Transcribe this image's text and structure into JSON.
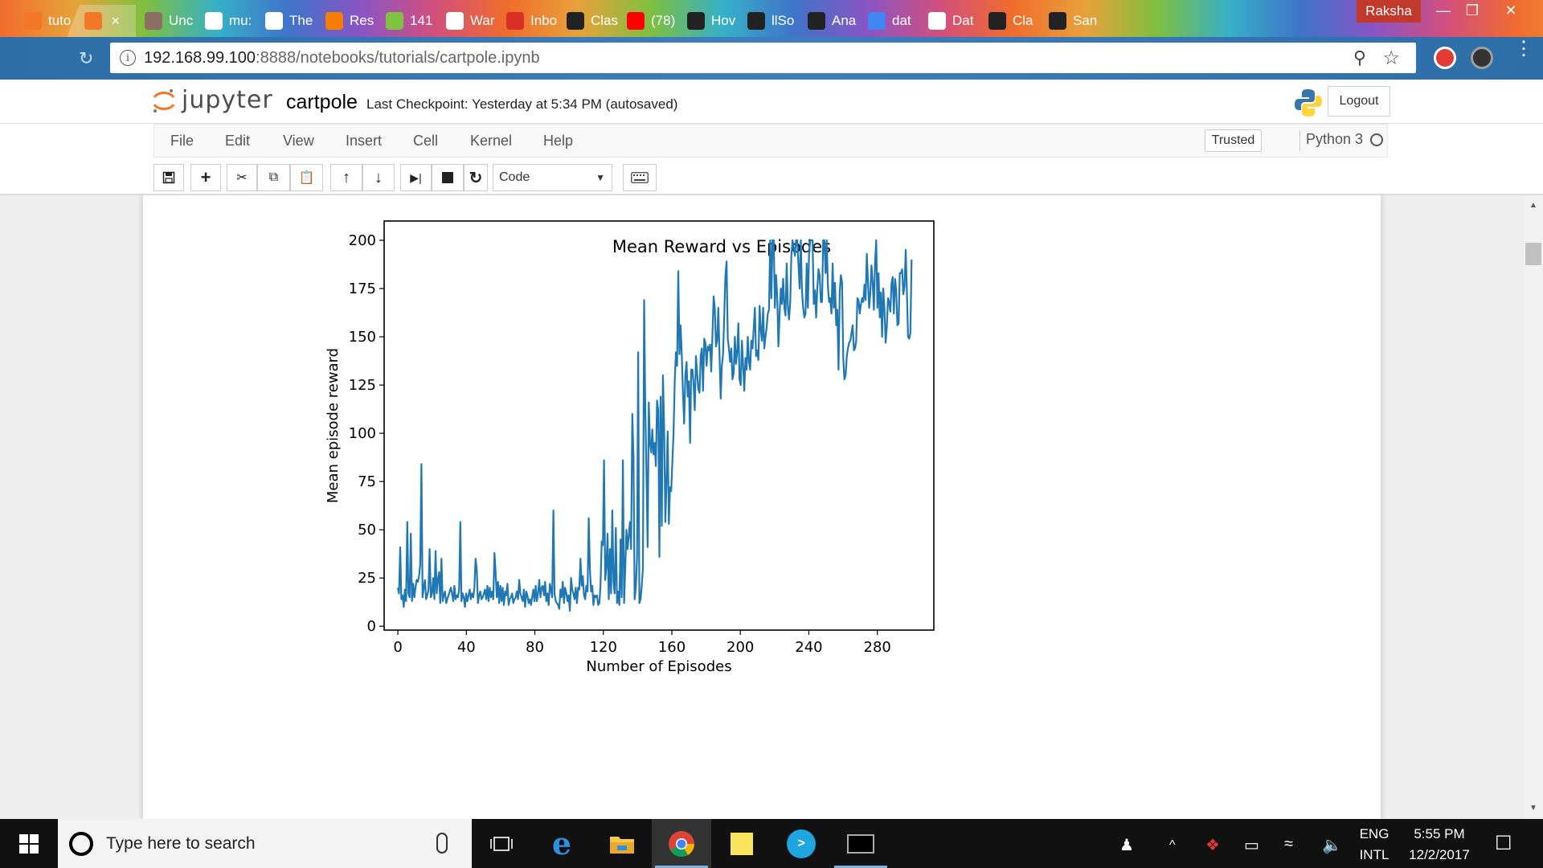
{
  "browser": {
    "tabs": [
      {
        "label": "tuto",
        "icon": "jupyter-icon",
        "color": "#f37726"
      },
      {
        "label": "",
        "icon": "jupyter-icon",
        "color": "#f37726",
        "active": true
      },
      {
        "label": "Unc",
        "icon": "image-icon",
        "color": "#8d6e63"
      },
      {
        "label": "mu:",
        "icon": "document-icon",
        "color": "#ffffff"
      },
      {
        "label": "The",
        "icon": "document-icon",
        "color": "#ffffff"
      },
      {
        "label": "Res",
        "icon": "blogger-icon",
        "color": "#f57d00"
      },
      {
        "label": "141",
        "icon": "smiley-icon",
        "color": "#7fc242"
      },
      {
        "label": "War",
        "icon": "document-icon",
        "color": "#ffffff"
      },
      {
        "label": "Inbo",
        "icon": "gmail-icon",
        "color": "#d93025"
      },
      {
        "label": "Clas",
        "icon": "piano-icon",
        "color": "#222222"
      },
      {
        "label": "(78)",
        "icon": "youtube-icon",
        "color": "#ff0000"
      },
      {
        "label": "Hov",
        "icon": "github-icon",
        "color": "#222222"
      },
      {
        "label": "llSo",
        "icon": "github-icon",
        "color": "#222222"
      },
      {
        "label": "Ana",
        "icon": "notebook-icon",
        "color": "#222222"
      },
      {
        "label": "dat",
        "icon": "google-icon",
        "color": "#4285f4"
      },
      {
        "label": "Dat",
        "icon": "document-icon",
        "color": "#ffffff"
      },
      {
        "label": "Cla",
        "icon": "piano-icon",
        "color": "#222222"
      },
      {
        "label": "San",
        "icon": "blackboard-icon",
        "color": "#222222"
      }
    ],
    "profile_name": "Raksha",
    "url_host": "192.168.99.100",
    "url_rest": ":8888/notebooks/tutorials/cartpole.ipynb"
  },
  "jupyter": {
    "logo_text": "jupyter",
    "notebook_name": "cartpole",
    "checkpoint": "Last Checkpoint: Yesterday at 5:34 PM (autosaved)",
    "logout_label": "Logout",
    "menu": [
      "File",
      "Edit",
      "View",
      "Insert",
      "Cell",
      "Kernel",
      "Help"
    ],
    "trusted_label": "Trusted",
    "kernel_name": "Python 3",
    "cell_type": "Code"
  },
  "chart_data": {
    "type": "line",
    "title": "Mean Reward vs Episodes",
    "xlabel": "Number of Episodes",
    "ylabel": "Mean episode reward",
    "xlim": [
      -8,
      313
    ],
    "ylim": [
      -2,
      210
    ],
    "xticks": [
      0,
      40,
      80,
      120,
      160,
      200,
      240,
      280
    ],
    "yticks": [
      0,
      25,
      50,
      75,
      100,
      125,
      150,
      175,
      200
    ],
    "line_color": "#1f77b4",
    "grid": false,
    "series": [
      {
        "values": [
          20,
          17,
          41,
          14,
          16,
          10,
          19,
          13,
          54,
          17,
          15,
          48,
          13,
          22,
          15,
          20,
          24,
          23,
          26,
          32,
          84,
          15,
          20,
          24,
          14,
          16,
          19,
          40,
          15,
          17,
          25,
          14,
          39,
          17,
          24,
          28,
          12,
          35,
          13,
          16,
          18,
          12,
          14,
          16,
          18,
          20,
          17,
          13,
          21,
          14,
          16,
          15,
          19,
          54,
          13,
          17,
          15,
          10,
          17,
          13,
          16,
          19,
          14,
          17,
          15,
          20,
          35,
          29,
          12,
          16,
          18,
          14,
          15,
          17,
          19,
          14,
          21,
          13,
          20,
          15,
          18,
          14,
          38,
          28,
          15,
          23,
          12,
          21,
          13,
          20,
          11,
          18,
          16,
          22,
          11,
          14,
          15,
          17,
          12,
          14,
          15,
          18,
          14,
          24,
          17,
          15,
          13,
          19,
          10,
          18,
          16,
          12,
          14,
          11,
          15,
          19,
          13,
          21,
          13,
          17,
          24,
          15,
          20,
          21,
          16,
          23,
          13,
          17,
          11,
          22,
          19,
          15,
          60,
          17,
          13,
          12,
          11,
          9,
          19,
          15,
          23,
          12,
          20,
          17,
          13,
          16,
          8,
          25,
          19,
          17,
          14,
          20,
          12,
          20,
          19,
          35,
          21,
          26,
          16,
          14,
          21,
          18,
          56,
          30,
          18,
          21,
          11,
          16,
          15,
          16,
          11,
          12,
          21,
          44,
          42,
          86,
          24,
          31,
          48,
          14,
          40,
          17,
          60,
          23,
          17,
          51,
          12,
          18,
          11,
          45,
          15,
          86,
          12,
          30,
          50,
          40,
          47,
          54,
          40,
          110,
          87,
          14,
          20,
          36,
          142,
          12,
          14,
          21,
          30,
          169,
          115,
          80,
          41,
          116,
          95,
          90,
          102,
          89,
          95,
          83,
          117,
          112,
          36,
          119,
          52,
          130,
          104,
          54,
          74,
          101,
          53,
          72,
          70,
          86,
          100,
          127,
          142,
          135,
          184,
          141,
          156,
          140,
          120,
          105,
          130,
          137,
          119,
          127,
          95,
          133,
          133,
          125,
          112,
          140,
          131,
          123,
          121,
          140,
          144,
          122,
          149,
          147,
          135,
          145,
          143,
          146,
          132,
          151,
          171,
          165,
          145,
          148,
          165,
          141,
          118,
          135,
          141,
          161,
          181,
          189,
          149,
          144,
          137,
          144,
          128,
          131,
          150,
          136,
          142,
          157,
          128,
          125,
          148,
          136,
          122,
          139,
          133,
          150,
          137,
          133,
          148,
          144,
          154,
          165,
          140,
          143,
          138,
          166,
          154,
          148,
          165,
          144,
          150,
          155,
          162,
          164,
          200,
          170,
          200,
          200,
          165,
          182,
          170,
          145,
          162,
          175,
          167,
          180,
          165,
          161,
          188,
          165,
          159,
          168,
          192,
          200,
          196,
          192,
          200,
          200,
          188,
          175,
          200,
          174,
          165,
          160,
          162,
          188,
          165,
          193,
          200,
          200,
          200,
          167,
          174,
          160,
          175,
          185,
          182,
          168,
          168,
          200,
          200,
          183,
          200,
          176,
          168,
          170,
          162,
          188,
          165,
          178,
          156,
          164,
          133,
          173,
          182,
          178,
          139,
          128,
          130,
          140,
          144,
          147,
          148,
          152,
          156,
          143,
          144,
          148,
          170,
          169,
          162,
          167,
          170,
          168,
          177,
          169,
          193,
          178,
          165,
          173,
          187,
          178,
          164,
          188,
          200,
          165,
          183,
          160,
          173,
          150,
          175,
          164,
          147,
          155,
          170,
          168,
          163,
          178,
          181,
          162,
          180,
          174,
          156,
          157,
          183,
          183,
          185,
          172,
          176,
          195,
          175,
          150,
          149,
          152,
          190
        ]
      }
    ]
  },
  "taskbar": {
    "search_placeholder": "Type here to search",
    "lang_top": "ENG",
    "lang_bottom": "INTL",
    "time": "5:55 PM",
    "date": "12/2/2017"
  }
}
